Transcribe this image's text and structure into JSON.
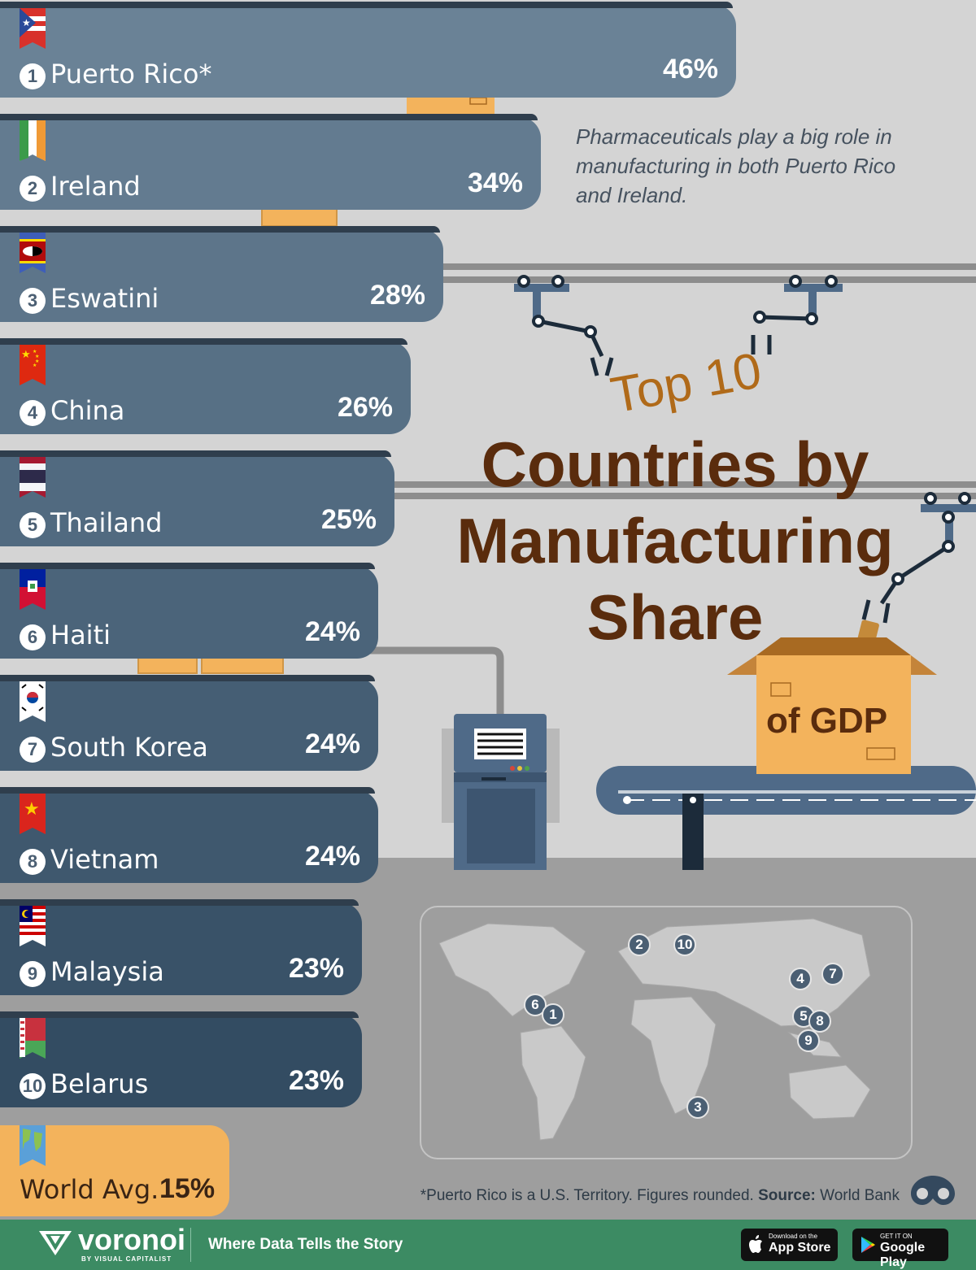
{
  "chart_data": {
    "type": "bar",
    "title": "Top 10 Countries by Manufacturing Share of GDP",
    "categories": [
      "Puerto Rico*",
      "Ireland",
      "Eswatini",
      "China",
      "Thailand",
      "Haiti",
      "South Korea",
      "Vietnam",
      "Malaysia",
      "Belarus"
    ],
    "values": [
      46,
      34,
      28,
      26,
      25,
      24,
      24,
      24,
      23,
      23
    ],
    "value_unit": "%",
    "ranks": [
      "1",
      "2",
      "3",
      "4",
      "5",
      "6",
      "7",
      "8",
      "9",
      "10"
    ],
    "labels": [
      "46%",
      "34%",
      "28%",
      "26%",
      "25%",
      "24%",
      "24%",
      "24%",
      "23%",
      "23%"
    ],
    "orientation": "horizontal",
    "reference": {
      "label": "World Avg.",
      "value": 15,
      "display": "15%"
    }
  },
  "title": {
    "line1": "Top 10",
    "line2": "Countries by Manufacturing Share",
    "line3": "of GDP"
  },
  "note": "Pharmaceuticals play a big role in manufacturing in both Puerto Rico and Ireland.",
  "map": {
    "markers": [
      {
        "label": "2",
        "name": "Ireland"
      },
      {
        "label": "10",
        "name": "Belarus"
      },
      {
        "label": "4",
        "name": "China"
      },
      {
        "label": "7",
        "name": "South Korea"
      },
      {
        "label": "6",
        "name": "Haiti"
      },
      {
        "label": "1",
        "name": "Puerto Rico"
      },
      {
        "label": "5",
        "name": "Thailand"
      },
      {
        "label": "8",
        "name": "Vietnam"
      },
      {
        "label": "9",
        "name": "Malaysia"
      },
      {
        "label": "3",
        "name": "Eswatini"
      }
    ]
  },
  "source": {
    "prefix": "*Puerto Rico is a U.S. Territory. Figures rounded.",
    "label": "Source:",
    "value": "World Bank"
  },
  "footer": {
    "brand": "voronoi",
    "brand_sub": "BY VISUAL CAPITALIST",
    "tagline": "Where Data Tells the Story",
    "app_store_small": "Download on the",
    "app_store": "App Store",
    "google_small": "GET IT ON",
    "google": "Google Play"
  },
  "colors": {
    "bar_top": "#6a8296",
    "bar_bottom": "#2f4860",
    "box": "#f3b35c",
    "title_dark": "#5a2c0d",
    "title_light": "#b06a19",
    "footer": "#3c8b63"
  }
}
